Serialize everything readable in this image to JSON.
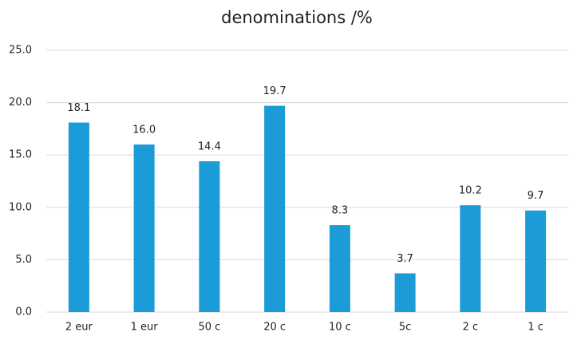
{
  "chart_data": {
    "type": "bar",
    "title": "denominations /%",
    "categories": [
      "2 eur",
      "1 eur",
      "50 c",
      "20 c",
      "10 c",
      "5c",
      "2 c",
      "1 c"
    ],
    "values": [
      18.1,
      16.0,
      14.4,
      19.7,
      8.3,
      3.7,
      10.2,
      9.7
    ],
    "value_labels": [
      "18.1",
      "16.0",
      "14.4",
      "19.7",
      "8.3",
      "3.7",
      "10.2",
      "9.7"
    ],
    "color": "#1b9bd7",
    "ylim": [
      0,
      25
    ],
    "yticks": [
      {
        "value": 0,
        "label": "0.0"
      },
      {
        "value": 5,
        "label": "5.0"
      },
      {
        "value": 10,
        "label": "10.0"
      },
      {
        "value": 15,
        "label": "15.0"
      },
      {
        "value": 20,
        "label": "20.0"
      },
      {
        "value": 25,
        "label": "25.0"
      }
    ],
    "grid": true
  }
}
